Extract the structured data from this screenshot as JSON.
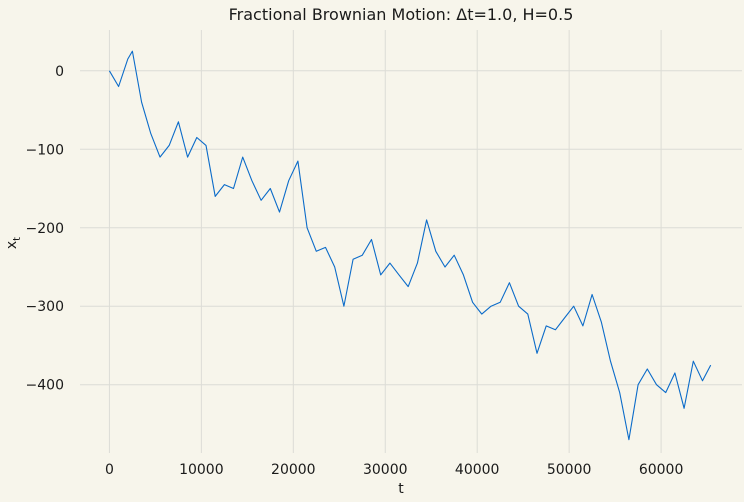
{
  "chart_data": {
    "type": "line",
    "title": "Fractional Brownian Motion: Δt=1.0, H=0.5",
    "xlabel": "t",
    "ylabel": "x_t",
    "xlim": [
      -3200,
      68800
    ],
    "ylim": [
      -487,
      52
    ],
    "x_ticks": [
      0,
      10000,
      20000,
      30000,
      40000,
      50000,
      60000
    ],
    "y_ticks": [
      0,
      -100,
      -200,
      -300,
      -400
    ],
    "x_tick_labels": [
      "0",
      "10000",
      "20000",
      "30000",
      "40000",
      "50000",
      "60000"
    ],
    "y_tick_labels": [
      "0",
      "−100",
      "−200",
      "−300",
      "−400"
    ],
    "grid": true,
    "line_color": "#0b6bc9",
    "series": [
      {
        "x": [
          0,
          1000,
          2000,
          2500,
          3500,
          4500,
          5500,
          6500,
          7500,
          8500,
          9500,
          10500,
          11500,
          12500,
          13500,
          14500,
          15500,
          16500,
          17500,
          18500,
          19500,
          20500,
          21500,
          22500,
          23500,
          24500,
          25500,
          26500,
          27500,
          28500,
          29500,
          30500,
          31500,
          32500,
          33500,
          34500,
          35500,
          36500,
          37500,
          38500,
          39500,
          40500,
          41500,
          42500,
          43500,
          44500,
          45500,
          46500,
          47500,
          48500,
          49500,
          50500,
          51500,
          52500,
          53500,
          54500,
          55500,
          56500,
          57500,
          58500,
          59500,
          60500,
          61500,
          62500,
          63500,
          64500,
          65400
        ],
        "y": [
          0,
          -20,
          15,
          25,
          -40,
          -80,
          -110,
          -95,
          -65,
          -110,
          -85,
          -95,
          -160,
          -145,
          -150,
          -110,
          -140,
          -165,
          -150,
          -180,
          -140,
          -115,
          -200,
          -230,
          -225,
          -250,
          -300,
          -240,
          -235,
          -215,
          -260,
          -245,
          -260,
          -275,
          -245,
          -190,
          -230,
          -250,
          -235,
          -260,
          -295,
          -310,
          -300,
          -295,
          -270,
          -300,
          -310,
          -360,
          -325,
          -330,
          -315,
          -300,
          -325,
          -285,
          -320,
          -370,
          -410,
          -470,
          -400,
          -380,
          -400,
          -410,
          -385,
          -430,
          -370,
          -395,
          -375
        ]
      }
    ]
  }
}
